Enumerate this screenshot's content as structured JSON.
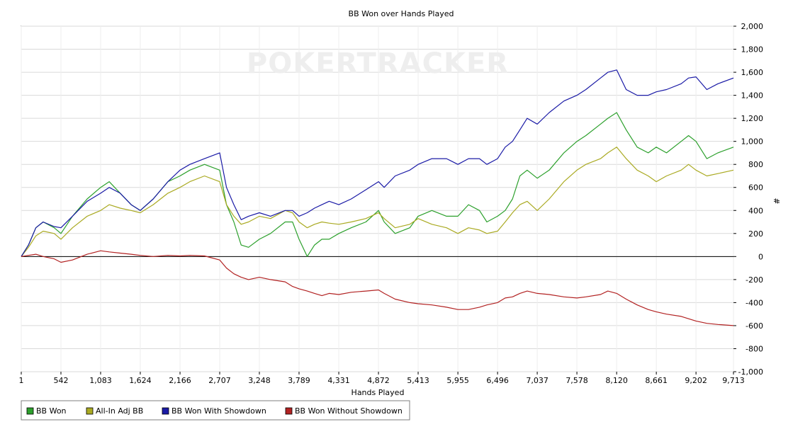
{
  "chart_data": {
    "type": "line",
    "title": "BB Won over Hands Played",
    "xlabel": "Hands Played",
    "ylabel": "#",
    "watermark": "POKERTRACKER",
    "xlim": [
      1,
      9713
    ],
    "ylim": [
      -1000,
      2000
    ],
    "x_ticks": [
      1,
      542,
      1083,
      1624,
      2166,
      2707,
      3248,
      3789,
      4331,
      4872,
      5413,
      5955,
      6496,
      7037,
      7578,
      8120,
      8661,
      9202,
      9713
    ],
    "x_tick_labels": [
      "1",
      "542",
      "1,083",
      "1,624",
      "2,166",
      "2,707",
      "3,248",
      "3,789",
      "4,331",
      "4,872",
      "5,413",
      "5,955",
      "6,496",
      "7,037",
      "7,578",
      "8,120",
      "8,661",
      "9,202",
      "9,713"
    ],
    "y_ticks": [
      2000,
      1800,
      1600,
      1400,
      1200,
      1000,
      800,
      600,
      400,
      200,
      0,
      -200,
      -400,
      -600,
      -800,
      -1000
    ],
    "y_tick_labels": [
      "2,000",
      "1,800",
      "1,600",
      "1,400",
      "1,200",
      "1,000",
      "800",
      "600",
      "400",
      "200",
      "0",
      "-200",
      "-400",
      "-600",
      "-800",
      "-1,000"
    ],
    "grid": true,
    "legend_position": "bottom-left",
    "series": [
      {
        "name": "BB Won",
        "color": "#2ca02c",
        "x": [
          1,
          100,
          200,
          300,
          450,
          542,
          700,
          900,
          1083,
          1200,
          1350,
          1500,
          1624,
          1800,
          2000,
          2166,
          2300,
          2500,
          2707,
          2800,
          2900,
          3000,
          3100,
          3248,
          3400,
          3600,
          3700,
          3789,
          3900,
          4000,
          4100,
          4200,
          4331,
          4500,
          4700,
          4872,
          4950,
          5100,
          5300,
          5413,
          5600,
          5800,
          5955,
          6100,
          6250,
          6350,
          6496,
          6600,
          6700,
          6800,
          6900,
          7037,
          7200,
          7400,
          7578,
          7700,
          7900,
          8000,
          8120,
          8250,
          8400,
          8550,
          8661,
          8800,
          9000,
          9100,
          9202,
          9350,
          9500,
          9713
        ],
        "y": [
          0,
          100,
          250,
          300,
          250,
          200,
          350,
          500,
          600,
          650,
          550,
          450,
          400,
          500,
          650,
          700,
          750,
          800,
          750,
          450,
          300,
          100,
          80,
          150,
          200,
          300,
          300,
          150,
          0,
          100,
          150,
          150,
          200,
          250,
          300,
          400,
          300,
          200,
          250,
          350,
          400,
          350,
          350,
          450,
          400,
          300,
          350,
          400,
          500,
          700,
          750,
          680,
          750,
          900,
          1000,
          1050,
          1150,
          1200,
          1250,
          1100,
          950,
          900,
          950,
          900,
          1000,
          1050,
          1000,
          850,
          900,
          950
        ]
      },
      {
        "name": "All-In Adj BB",
        "color": "#aaaa22",
        "x": [
          1,
          100,
          200,
          300,
          450,
          542,
          700,
          900,
          1083,
          1200,
          1350,
          1500,
          1624,
          1800,
          2000,
          2166,
          2300,
          2500,
          2707,
          2800,
          2900,
          3000,
          3100,
          3248,
          3400,
          3600,
          3700,
          3789,
          3900,
          4000,
          4100,
          4200,
          4331,
          4500,
          4700,
          4872,
          4950,
          5100,
          5300,
          5413,
          5600,
          5800,
          5955,
          6100,
          6250,
          6350,
          6496,
          6600,
          6700,
          6800,
          6900,
          7037,
          7200,
          7400,
          7578,
          7700,
          7900,
          8000,
          8120,
          8250,
          8400,
          8550,
          8661,
          8800,
          9000,
          9100,
          9202,
          9350,
          9500,
          9713
        ],
        "y": [
          0,
          80,
          180,
          220,
          200,
          150,
          250,
          350,
          400,
          450,
          420,
          400,
          380,
          450,
          550,
          600,
          650,
          700,
          650,
          450,
          350,
          280,
          300,
          350,
          330,
          400,
          380,
          300,
          250,
          280,
          300,
          290,
          280,
          300,
          330,
          380,
          330,
          250,
          280,
          330,
          280,
          250,
          200,
          250,
          230,
          200,
          220,
          300,
          380,
          450,
          480,
          400,
          500,
          650,
          750,
          800,
          850,
          900,
          950,
          850,
          750,
          700,
          650,
          700,
          750,
          800,
          750,
          700,
          720,
          750
        ]
      },
      {
        "name": "BB Won With Showdown",
        "color": "#1a1aa6",
        "x": [
          1,
          100,
          200,
          300,
          450,
          542,
          700,
          900,
          1083,
          1200,
          1350,
          1500,
          1624,
          1800,
          2000,
          2166,
          2300,
          2500,
          2707,
          2800,
          2900,
          3000,
          3100,
          3248,
          3400,
          3600,
          3700,
          3789,
          3900,
          4000,
          4100,
          4200,
          4331,
          4500,
          4700,
          4872,
          4950,
          5100,
          5300,
          5413,
          5600,
          5800,
          5955,
          6100,
          6250,
          6350,
          6496,
          6600,
          6700,
          6800,
          6900,
          7037,
          7200,
          7400,
          7578,
          7700,
          7900,
          8000,
          8120,
          8250,
          8400,
          8550,
          8661,
          8800,
          9000,
          9100,
          9202,
          9350,
          9500,
          9713
        ],
        "y": [
          0,
          100,
          250,
          300,
          260,
          250,
          350,
          480,
          550,
          600,
          550,
          450,
          400,
          500,
          650,
          750,
          800,
          850,
          900,
          600,
          450,
          320,
          350,
          380,
          350,
          400,
          400,
          350,
          380,
          420,
          450,
          480,
          450,
          500,
          580,
          650,
          600,
          700,
          750,
          800,
          850,
          850,
          800,
          850,
          850,
          800,
          850,
          950,
          1000,
          1100,
          1200,
          1150,
          1250,
          1350,
          1400,
          1450,
          1550,
          1600,
          1620,
          1450,
          1400,
          1400,
          1430,
          1450,
          1500,
          1550,
          1560,
          1450,
          1500,
          1550
        ]
      },
      {
        "name": "BB Won Without Showdown",
        "color": "#b22222",
        "x": [
          1,
          100,
          200,
          300,
          450,
          542,
          700,
          900,
          1083,
          1200,
          1350,
          1500,
          1624,
          1800,
          2000,
          2166,
          2300,
          2500,
          2707,
          2800,
          2900,
          3000,
          3100,
          3248,
          3400,
          3600,
          3700,
          3789,
          3900,
          4000,
          4100,
          4200,
          4331,
          4500,
          4700,
          4872,
          4950,
          5100,
          5300,
          5413,
          5600,
          5800,
          5955,
          6100,
          6250,
          6350,
          6496,
          6600,
          6700,
          6800,
          6900,
          7037,
          7200,
          7400,
          7578,
          7700,
          7900,
          8000,
          8120,
          8250,
          8400,
          8550,
          8661,
          8800,
          9000,
          9100,
          9202,
          9350,
          9500,
          9713
        ],
        "y": [
          0,
          10,
          20,
          0,
          -20,
          -50,
          -30,
          20,
          50,
          40,
          30,
          20,
          10,
          0,
          10,
          5,
          10,
          5,
          -30,
          -100,
          -150,
          -180,
          -200,
          -180,
          -200,
          -220,
          -260,
          -280,
          -300,
          -320,
          -340,
          -320,
          -330,
          -310,
          -300,
          -290,
          -320,
          -370,
          -400,
          -410,
          -420,
          -440,
          -460,
          -460,
          -440,
          -420,
          -400,
          -360,
          -350,
          -320,
          -300,
          -320,
          -330,
          -350,
          -360,
          -350,
          -330,
          -300,
          -320,
          -370,
          -420,
          -460,
          -480,
          -500,
          -520,
          -540,
          -560,
          -580,
          -590,
          -600
        ]
      }
    ]
  }
}
